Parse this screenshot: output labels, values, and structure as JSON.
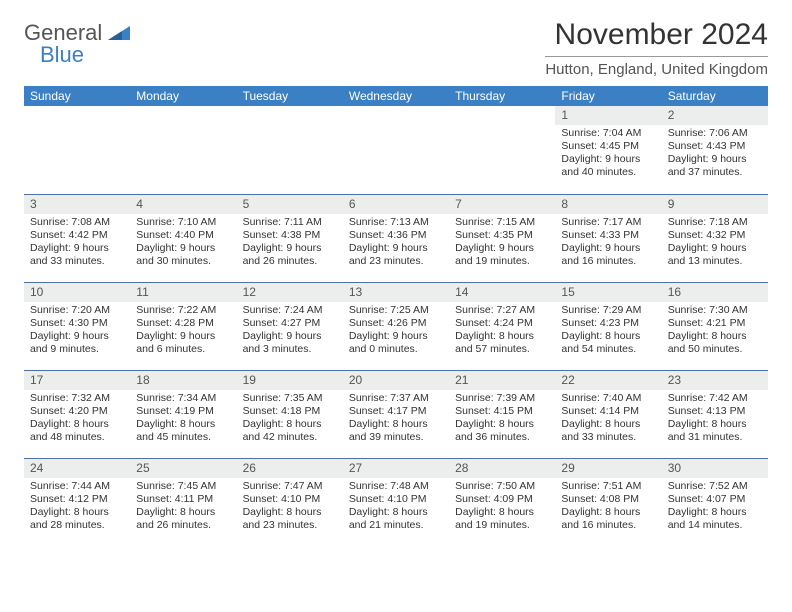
{
  "logo": {
    "word1": "General",
    "word2": "Blue"
  },
  "title": "November 2024",
  "location": "Hutton, England, United Kingdom",
  "colors": {
    "header_bg": "#3b7fc4",
    "header_text": "#ffffff",
    "daynum_bg": "#eceded",
    "row_border": "#4a6fa0",
    "logo_accent": "#3b7fc4"
  },
  "day_headers": [
    "Sunday",
    "Monday",
    "Tuesday",
    "Wednesday",
    "Thursday",
    "Friday",
    "Saturday"
  ],
  "weeks": [
    [
      null,
      null,
      null,
      null,
      null,
      {
        "n": "1",
        "sunrise": "7:04 AM",
        "sunset": "4:45 PM",
        "day_h": "9",
        "day_m": "40"
      },
      {
        "n": "2",
        "sunrise": "7:06 AM",
        "sunset": "4:43 PM",
        "day_h": "9",
        "day_m": "37"
      }
    ],
    [
      {
        "n": "3",
        "sunrise": "7:08 AM",
        "sunset": "4:42 PM",
        "day_h": "9",
        "day_m": "33"
      },
      {
        "n": "4",
        "sunrise": "7:10 AM",
        "sunset": "4:40 PM",
        "day_h": "9",
        "day_m": "30"
      },
      {
        "n": "5",
        "sunrise": "7:11 AM",
        "sunset": "4:38 PM",
        "day_h": "9",
        "day_m": "26"
      },
      {
        "n": "6",
        "sunrise": "7:13 AM",
        "sunset": "4:36 PM",
        "day_h": "9",
        "day_m": "23"
      },
      {
        "n": "7",
        "sunrise": "7:15 AM",
        "sunset": "4:35 PM",
        "day_h": "9",
        "day_m": "19"
      },
      {
        "n": "8",
        "sunrise": "7:17 AM",
        "sunset": "4:33 PM",
        "day_h": "9",
        "day_m": "16"
      },
      {
        "n": "9",
        "sunrise": "7:18 AM",
        "sunset": "4:32 PM",
        "day_h": "9",
        "day_m": "13"
      }
    ],
    [
      {
        "n": "10",
        "sunrise": "7:20 AM",
        "sunset": "4:30 PM",
        "day_h": "9",
        "day_m": "9"
      },
      {
        "n": "11",
        "sunrise": "7:22 AM",
        "sunset": "4:28 PM",
        "day_h": "9",
        "day_m": "6"
      },
      {
        "n": "12",
        "sunrise": "7:24 AM",
        "sunset": "4:27 PM",
        "day_h": "9",
        "day_m": "3"
      },
      {
        "n": "13",
        "sunrise": "7:25 AM",
        "sunset": "4:26 PM",
        "day_h": "9",
        "day_m": "0"
      },
      {
        "n": "14",
        "sunrise": "7:27 AM",
        "sunset": "4:24 PM",
        "day_h": "8",
        "day_m": "57"
      },
      {
        "n": "15",
        "sunrise": "7:29 AM",
        "sunset": "4:23 PM",
        "day_h": "8",
        "day_m": "54"
      },
      {
        "n": "16",
        "sunrise": "7:30 AM",
        "sunset": "4:21 PM",
        "day_h": "8",
        "day_m": "50"
      }
    ],
    [
      {
        "n": "17",
        "sunrise": "7:32 AM",
        "sunset": "4:20 PM",
        "day_h": "8",
        "day_m": "48"
      },
      {
        "n": "18",
        "sunrise": "7:34 AM",
        "sunset": "4:19 PM",
        "day_h": "8",
        "day_m": "45"
      },
      {
        "n": "19",
        "sunrise": "7:35 AM",
        "sunset": "4:18 PM",
        "day_h": "8",
        "day_m": "42"
      },
      {
        "n": "20",
        "sunrise": "7:37 AM",
        "sunset": "4:17 PM",
        "day_h": "8",
        "day_m": "39"
      },
      {
        "n": "21",
        "sunrise": "7:39 AM",
        "sunset": "4:15 PM",
        "day_h": "8",
        "day_m": "36"
      },
      {
        "n": "22",
        "sunrise": "7:40 AM",
        "sunset": "4:14 PM",
        "day_h": "8",
        "day_m": "33"
      },
      {
        "n": "23",
        "sunrise": "7:42 AM",
        "sunset": "4:13 PM",
        "day_h": "8",
        "day_m": "31"
      }
    ],
    [
      {
        "n": "24",
        "sunrise": "7:44 AM",
        "sunset": "4:12 PM",
        "day_h": "8",
        "day_m": "28"
      },
      {
        "n": "25",
        "sunrise": "7:45 AM",
        "sunset": "4:11 PM",
        "day_h": "8",
        "day_m": "26"
      },
      {
        "n": "26",
        "sunrise": "7:47 AM",
        "sunset": "4:10 PM",
        "day_h": "8",
        "day_m": "23"
      },
      {
        "n": "27",
        "sunrise": "7:48 AM",
        "sunset": "4:10 PM",
        "day_h": "8",
        "day_m": "21"
      },
      {
        "n": "28",
        "sunrise": "7:50 AM",
        "sunset": "4:09 PM",
        "day_h": "8",
        "day_m": "19"
      },
      {
        "n": "29",
        "sunrise": "7:51 AM",
        "sunset": "4:08 PM",
        "day_h": "8",
        "day_m": "16"
      },
      {
        "n": "30",
        "sunrise": "7:52 AM",
        "sunset": "4:07 PM",
        "day_h": "8",
        "day_m": "14"
      }
    ]
  ],
  "labels": {
    "sunrise": "Sunrise:",
    "sunset": "Sunset:",
    "daylight1": "Daylight:",
    "hours_word": "hours",
    "and_word": "and",
    "minutes_word": "minutes."
  }
}
